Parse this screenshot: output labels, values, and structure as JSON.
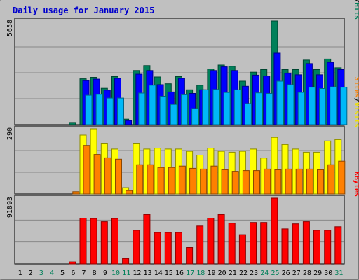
{
  "chart_data": {
    "type": "bar",
    "title": "Daily usage for January 2015",
    "days": [
      "1",
      "2",
      "3",
      "4",
      "5",
      "6",
      "7",
      "8",
      "9",
      "10",
      "11",
      "12",
      "13",
      "14",
      "15",
      "16",
      "17",
      "18",
      "19",
      "20",
      "21",
      "22",
      "23",
      "24",
      "25",
      "26",
      "27",
      "28",
      "29",
      "30",
      "31"
    ],
    "weekend_days": [
      "3",
      "4",
      "10",
      "11",
      "17",
      "18",
      "24",
      "25",
      "31"
    ],
    "panels": [
      {
        "max_label": "5658",
        "max": 5658,
        "legend": [
          {
            "text": "Pages",
            "color": "#00b8f8"
          },
          {
            "text": "/",
            "color": "#000000"
          },
          {
            "text": "Files",
            "color": "#0000ff"
          },
          {
            "text": "/",
            "color": "#000000"
          },
          {
            "text": "Hits",
            "color": "#00805a"
          }
        ],
        "series": [
          {
            "name": "Hits",
            "color": "#00805a",
            "values": [
              0,
              0,
              0,
              0,
              0,
              120,
              2500,
              2580,
              1980,
              2620,
              300,
              2950,
              3220,
              2600,
              2230,
              2620,
              1900,
              2150,
              3030,
              3250,
              3180,
              2370,
              2860,
              3000,
              5658,
              3000,
              3000,
              3520,
              3000,
              3580,
              3100
            ]
          },
          {
            "name": "Files",
            "color": "#0000ff",
            "values": [
              0,
              0,
              0,
              0,
              0,
              0,
              2400,
              2480,
              1880,
              2520,
              220,
              2750,
              2950,
              2180,
              1780,
              2520,
              1700,
              1900,
              2950,
              3150,
              2950,
              2090,
              2700,
              2650,
              3900,
              2800,
              2720,
              3330,
              2720,
              3400,
              3000
            ]
          },
          {
            "name": "Pages",
            "color": "#00b8f8",
            "values": [
              0,
              0,
              0,
              0,
              0,
              0,
              1600,
              1650,
              1450,
              1450,
              0,
              1720,
              2150,
              1550,
              1100,
              1630,
              880,
              1900,
              1920,
              1750,
              1900,
              1150,
              1730,
              1700,
              2370,
              2180,
              1760,
              2040,
              1970,
              2060,
              2040
            ]
          }
        ]
      },
      {
        "max_label": "290",
        "max": 290,
        "legend": [
          {
            "text": "Sites",
            "color": "#ff8000"
          },
          {
            "text": "/",
            "color": "#000000"
          },
          {
            "text": "Visits",
            "color": "#f0e000"
          }
        ],
        "series": [
          {
            "name": "Visits",
            "color": "#ffff00",
            "values": [
              0,
              0,
              0,
              0,
              0,
              0,
              262,
              290,
              226,
              200,
              28,
              226,
              200,
              204,
              200,
              200,
              190,
              173,
              204,
              190,
              186,
              190,
              200,
              160,
              252,
              220,
              200,
              186,
              186,
              236,
              242
            ]
          },
          {
            "name": "Sites",
            "color": "#ff8000",
            "values": [
              0,
              0,
              0,
              0,
              0,
              10,
              216,
              176,
              161,
              155,
              15,
              130,
              130,
              118,
              118,
              124,
              114,
              111,
              124,
              108,
              101,
              104,
              104,
              111,
              108,
              111,
              111,
              111,
              108,
              130,
              146
            ]
          }
        ]
      },
      {
        "max_label": "91893",
        "max": 91893,
        "legend": [
          {
            "text": "KBytes",
            "color": "#ff0000"
          }
        ],
        "series": [
          {
            "name": "KBytes",
            "color": "#ff0000",
            "values": [
              0,
              0,
              0,
              0,
              0,
              2860,
              64000,
              63500,
              59000,
              63500,
              7500,
              47000,
              69000,
              44000,
              44000,
              44000,
              23000,
              53000,
              64000,
              69000,
              57000,
              41000,
              58000,
              58000,
              91893,
              49000,
              56000,
              59000,
              47000,
              47000,
              52000
            ]
          }
        ]
      }
    ]
  }
}
